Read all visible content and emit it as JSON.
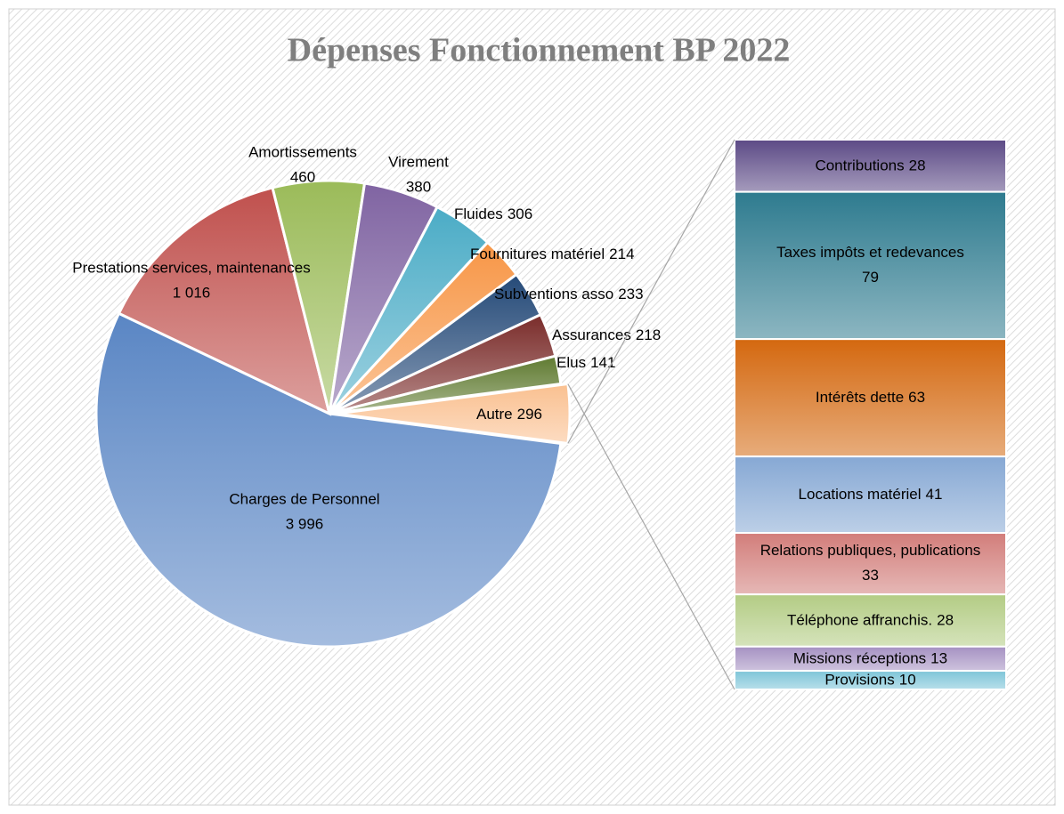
{
  "chart_data": {
    "type": "pie_of_bar",
    "title": "Dépenses Fonctionnement BP 2022",
    "pie": {
      "categories": [
        "Charges de Personnel",
        "Prestations services, maintenances",
        "Amortissements",
        "Virement",
        "Fluides",
        "Fournitures matériel",
        "Subventions asso",
        "Assurances",
        "Elus",
        "Autre"
      ],
      "values": [
        3996,
        1016,
        460,
        380,
        306,
        214,
        233,
        218,
        141,
        296
      ],
      "value_labels": [
        "3 996",
        "1 016",
        "460",
        "380",
        "306",
        "214",
        "233",
        "218",
        "141",
        "296"
      ],
      "colors": [
        "#5a86c4",
        "#c0504d",
        "#9bbb59",
        "#8064a2",
        "#4bacc6",
        "#f79646",
        "#254a78",
        "#7a2c2a",
        "#5f7a30",
        "#fac090"
      ]
    },
    "bar": {
      "categories": [
        "Contributions",
        "Taxes impôts et redevances",
        "Intérêts dette",
        "Locations matériel",
        "Relations publiques, publications",
        "Téléphone affranchis.",
        "Missions réceptions",
        "Provisions"
      ],
      "values": [
        28,
        79,
        63,
        41,
        33,
        28,
        13,
        10
      ],
      "colors": [
        "#5c4a86",
        "#2e7b8f",
        "#d4680f",
        "#86a8d4",
        "#d27d7a",
        "#b3cc84",
        "#a591c2",
        "#7ec5d8"
      ]
    }
  }
}
